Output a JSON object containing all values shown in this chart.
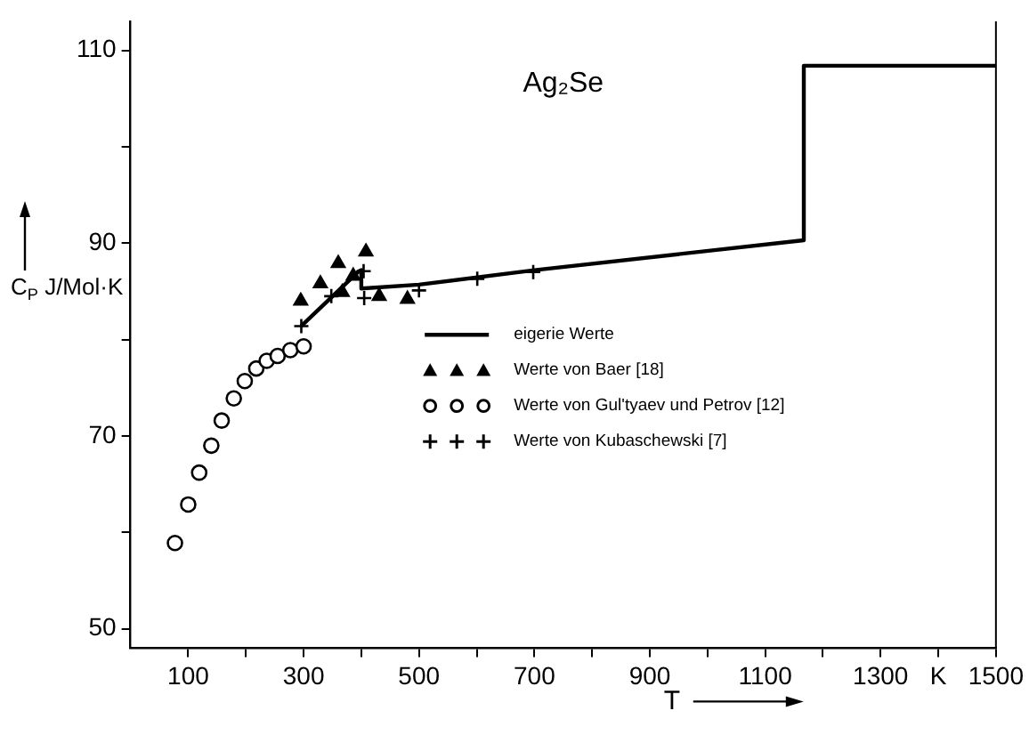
{
  "chart_data": {
    "type": "scatter",
    "title": "Ag₂Se",
    "xlabel": "T",
    "ylabel": "C$_{P}$ J/Mol·K",
    "xlim": [
      0,
      1500
    ],
    "ylim": [
      48,
      113
    ],
    "xticks": [
      100,
      {
        "value": 200,
        "label": null
      },
      300,
      {
        "value": 400,
        "label": null
      },
      500,
      {
        "value": 600,
        "label": null
      },
      700,
      {
        "value": 800,
        "label": null
      },
      900,
      {
        "value": 1000,
        "label": null
      },
      1100,
      {
        "value": 1200,
        "label": null
      },
      1300,
      {
        "value": 1400,
        "label": "K"
      },
      1500
    ],
    "yticks": [
      50,
      {
        "value": 60,
        "label": null
      },
      70,
      {
        "value": 80,
        "label": null
      },
      90,
      {
        "value": 100,
        "label": null
      },
      110
    ],
    "grid": false,
    "legend": "right",
    "series": [
      {
        "name": "eigerie Werte",
        "type": "line",
        "marker": "none",
        "line_style": "solid",
        "color": "#000000",
        "x": [
          296,
          396,
          400,
          400,
          500,
          700,
          1167,
          1167,
          1500
        ],
        "values": [
          81.4,
          87.1,
          87.2,
          85.3,
          85.7,
          87.2,
          90.3,
          108.4,
          108.4
        ]
      },
      {
        "name": "Werte von Baer [18]",
        "marker": "triangle",
        "color": "#000000",
        "x": [
          295,
          329,
          360,
          386,
          367,
          408,
          431,
          480
        ],
        "values": [
          84.0,
          85.8,
          87.9,
          86.6,
          84.9,
          89.1,
          84.5,
          84.2
        ]
      },
      {
        "name": "Werte von Gul'tyaev und Petrov [12]",
        "marker": "circle",
        "color": "#000000",
        "x": [
          77,
          100,
          119,
          140,
          158,
          179,
          198,
          218,
          236,
          255,
          277,
          300
        ],
        "values": [
          58.9,
          62.9,
          66.2,
          69.0,
          71.6,
          73.9,
          75.7,
          77.0,
          77.8,
          78.3,
          78.9,
          79.3
        ]
      },
      {
        "name": "Werte von Kubaschewski [7]",
        "marker": "cross",
        "color": "#000000",
        "x": [
          296,
          348,
          404,
          405,
          500,
          601,
          698
        ],
        "values": [
          81.4,
          84.5,
          87.1,
          84.3,
          85.1,
          86.3,
          87.0
        ]
      }
    ]
  }
}
